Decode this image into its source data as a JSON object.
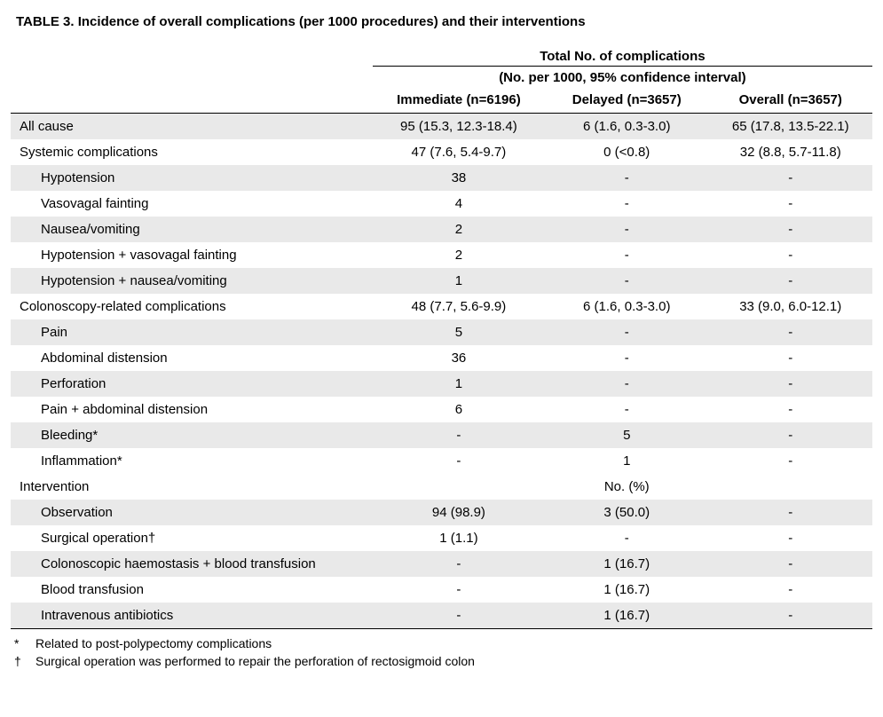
{
  "title": "TABLE 3.  Incidence of overall complications (per 1000 procedures) and their interventions",
  "super_header_l1": "Total No. of complications",
  "super_header_l2": "(No. per 1000, 95% confidence interval)",
  "col_headers": {
    "c1": "Immediate (n=6196)",
    "c2": "Delayed (n=3657)",
    "c3": "Overall (n=3657)"
  },
  "rows": [
    {
      "label": "All cause",
      "indent": 0,
      "c1": "95 (15.3, 12.3-18.4)",
      "c2": "6 (1.6, 0.3-3.0)",
      "c3": "65 (17.8, 13.5-22.1)"
    },
    {
      "label": "Systemic complications",
      "indent": 0,
      "c1": "47 (7.6, 5.4-9.7)",
      "c2": "0 (<0.8)",
      "c3": "32 (8.8, 5.7-11.8)"
    },
    {
      "label": "Hypotension",
      "indent": 1,
      "c1": "38",
      "c2": "-",
      "c3": "-"
    },
    {
      "label": "Vasovagal fainting",
      "indent": 1,
      "c1": "4",
      "c2": "-",
      "c3": "-"
    },
    {
      "label": "Nausea/vomiting",
      "indent": 1,
      "c1": "2",
      "c2": "-",
      "c3": "-"
    },
    {
      "label": "Hypotension + vasovagal fainting",
      "indent": 1,
      "c1": "2",
      "c2": "-",
      "c3": "-"
    },
    {
      "label": "Hypotension + nausea/vomiting",
      "indent": 1,
      "c1": "1",
      "c2": "-",
      "c3": "-"
    },
    {
      "label": "Colonoscopy-related complications",
      "indent": 0,
      "c1": "48 (7.7, 5.6-9.9)",
      "c2": "6 (1.6, 0.3-3.0)",
      "c3": "33 (9.0, 6.0-12.1)"
    },
    {
      "label": "Pain",
      "indent": 1,
      "c1": "5",
      "c2": "-",
      "c3": "-"
    },
    {
      "label": "Abdominal distension",
      "indent": 1,
      "c1": "36",
      "c2": "-",
      "c3": "-"
    },
    {
      "label": "Perforation",
      "indent": 1,
      "c1": "1",
      "c2": "-",
      "c3": "-"
    },
    {
      "label": "Pain + abdominal distension",
      "indent": 1,
      "c1": "6",
      "c2": "-",
      "c3": "-"
    },
    {
      "label": "Bleeding*",
      "indent": 1,
      "c1": "-",
      "c2": "5",
      "c3": "-"
    },
    {
      "label": "Inflammation*",
      "indent": 1,
      "c1": "-",
      "c2": "1",
      "c3": "-"
    }
  ],
  "intervention_header": {
    "label": "Intervention",
    "mid": "No. (%)"
  },
  "intervention_rows": [
    {
      "label": "Observation",
      "indent": 1,
      "c1": "94 (98.9)",
      "c2": "3 (50.0)",
      "c3": "-"
    },
    {
      "label": "Surgical operation†",
      "indent": 1,
      "c1": "1 (1.1)",
      "c2": "-",
      "c3": "-"
    },
    {
      "label": "Colonoscopic haemostasis + blood transfusion",
      "indent": 1,
      "c1": "-",
      "c2": "1 (16.7)",
      "c3": "-"
    },
    {
      "label": "Blood transfusion",
      "indent": 1,
      "c1": "-",
      "c2": "1 (16.7)",
      "c3": "-"
    },
    {
      "label": "Intravenous antibiotics",
      "indent": 1,
      "c1": "-",
      "c2": "1 (16.7)",
      "c3": "-"
    }
  ],
  "footnotes": [
    {
      "sym": "*",
      "text": "Related to post-polypectomy complications"
    },
    {
      "sym": "†",
      "text": "Surgical operation was performed to repair the perforation of rectosigmoid colon"
    }
  ]
}
